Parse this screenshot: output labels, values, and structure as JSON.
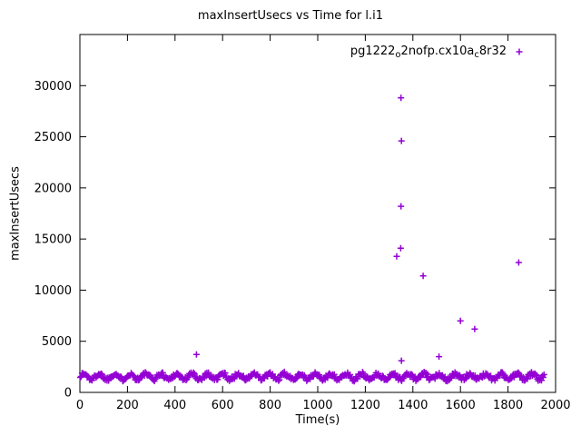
{
  "chart_data": {
    "type": "scatter",
    "title": "maxInsertUsecs vs Time for l.i1",
    "xlabel": "Time(s)",
    "ylabel": "maxInsertUsecs",
    "xlim": [
      0,
      2000
    ],
    "ylim": [
      0,
      35000
    ],
    "x_ticks": [
      0,
      200,
      400,
      600,
      800,
      1000,
      1200,
      1400,
      1600,
      1800,
      2000
    ],
    "y_ticks": [
      0,
      5000,
      10000,
      15000,
      20000,
      25000,
      30000
    ],
    "grid": false,
    "background_color": "#ffffff",
    "border_color": "#000000",
    "legend": {
      "position": "top-right-inside",
      "label_plain": "pg1222_o2nofp.cx10a_c8r32",
      "label_segments": [
        {
          "text": "pg1222",
          "sub": false
        },
        {
          "text": "o",
          "sub": true
        },
        {
          "text": "2nofp.cx10a",
          "sub": false
        },
        {
          "text": "c",
          "sub": true
        },
        {
          "text": "8r32",
          "sub": false
        }
      ]
    },
    "series": [
      {
        "name": "pg1222_o2nofp.cx10a_c8r32",
        "marker": "plus",
        "color": "#9400d3",
        "outlier_points": [
          [
            490,
            3700
          ],
          [
            1332,
            13300
          ],
          [
            1349,
            14100
          ],
          [
            1350,
            18200
          ],
          [
            1350,
            28800
          ],
          [
            1352,
            24600
          ],
          [
            1352,
            3100
          ],
          [
            1443,
            11400
          ],
          [
            1510,
            3500
          ],
          [
            1600,
            7000
          ],
          [
            1660,
            6200
          ],
          [
            1845,
            12700
          ]
        ],
        "baseline_band": {
          "description": "Dense band of per-interval max insert latency samples oscillating around ~1500 usecs",
          "x_start": 2,
          "x_end": 1952,
          "x_step": 3.5,
          "y_center": 1550,
          "y_wave_amplitude": 260,
          "y_wave_period_s": 65,
          "y_noise": 420,
          "y_min_clamp": 1060,
          "approx_y_range": [
            1100,
            2150
          ],
          "seed": 1337
        }
      }
    ]
  }
}
